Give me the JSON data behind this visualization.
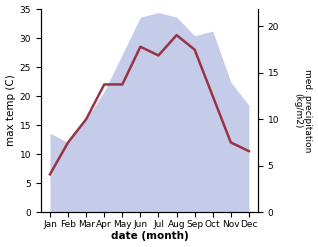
{
  "months": [
    "Jan",
    "Feb",
    "Mar",
    "Apr",
    "May",
    "Jun",
    "Jul",
    "Aug",
    "Sep",
    "Oct",
    "Nov",
    "Dec"
  ],
  "x": [
    0,
    1,
    2,
    3,
    4,
    5,
    6,
    7,
    8,
    9,
    10,
    11
  ],
  "temperature": [
    6.5,
    12.0,
    16.0,
    22.0,
    22.0,
    28.5,
    27.0,
    30.5,
    28.0,
    20.0,
    12.0,
    10.5
  ],
  "precipitation": [
    8.5,
    7.5,
    10.0,
    13.0,
    17.0,
    21.0,
    21.5,
    21.0,
    19.0,
    19.5,
    14.0,
    11.5
  ],
  "temp_color": "#993344",
  "precip_fill_color": "#c5ccea",
  "temp_ylim": [
    0,
    35
  ],
  "precip_ylim": [
    0,
    21.875
  ],
  "temp_yticks": [
    0,
    5,
    10,
    15,
    20,
    25,
    30,
    35
  ],
  "precip_yticks": [
    0,
    5,
    10,
    15,
    20
  ],
  "xlabel": "date (month)",
  "ylabel_left": "max temp (C)",
  "ylabel_right": "med. precipitation\n(kg/m2)",
  "line_width": 1.8,
  "tick_fontsize": 6.5,
  "label_fontsize": 7.5,
  "background_color": "#ffffff"
}
